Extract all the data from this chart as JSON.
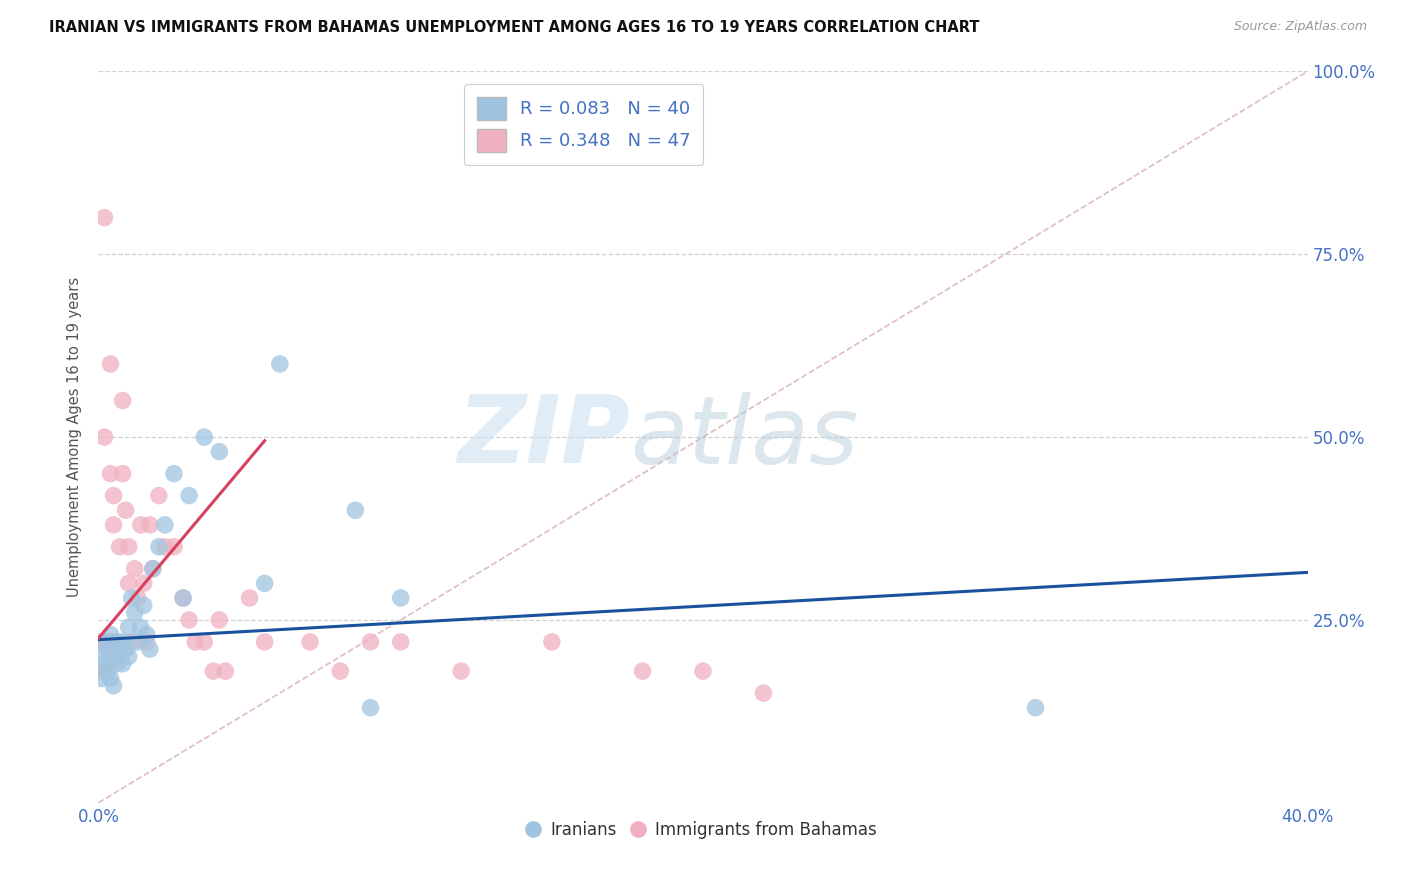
{
  "title": "IRANIAN VS IMMIGRANTS FROM BAHAMAS UNEMPLOYMENT AMONG AGES 16 TO 19 YEARS CORRELATION CHART",
  "source": "Source: ZipAtlas.com",
  "ylabel": "Unemployment Among Ages 16 to 19 years",
  "xlim": [
    0.0,
    0.4
  ],
  "ylim": [
    0.0,
    1.0
  ],
  "watermark_zip": "ZIP",
  "watermark_atlas": "atlas",
  "legend_r1": "R = 0.083",
  "legend_n1": "N = 40",
  "legend_r2": "R = 0.348",
  "legend_n2": "N = 47",
  "blue_scatter_color": "#a0c4e0",
  "pink_scatter_color": "#f0b0c0",
  "blue_line_color": "#1a52a0",
  "pink_line_color": "#d84060",
  "diag_color": "#d0a0a8",
  "axis_label_color": "#4472c4",
  "grid_color": "#cccccc",
  "background_color": "#ffffff",
  "iranians_x": [
    0.001,
    0.001,
    0.002,
    0.002,
    0.003,
    0.003,
    0.004,
    0.004,
    0.005,
    0.005,
    0.005,
    0.006,
    0.006,
    0.007,
    0.008,
    0.008,
    0.009,
    0.01,
    0.01,
    0.011,
    0.012,
    0.013,
    0.014,
    0.015,
    0.016,
    0.017,
    0.018,
    0.02,
    0.022,
    0.025,
    0.028,
    0.03,
    0.035,
    0.04,
    0.055,
    0.06,
    0.085,
    0.09,
    0.1,
    0.31
  ],
  "iranians_y": [
    0.2,
    0.17,
    0.22,
    0.19,
    0.21,
    0.18,
    0.23,
    0.17,
    0.22,
    0.2,
    0.16,
    0.22,
    0.19,
    0.21,
    0.22,
    0.19,
    0.21,
    0.24,
    0.2,
    0.28,
    0.26,
    0.22,
    0.24,
    0.27,
    0.23,
    0.21,
    0.32,
    0.35,
    0.38,
    0.45,
    0.28,
    0.42,
    0.5,
    0.48,
    0.3,
    0.6,
    0.4,
    0.13,
    0.28,
    0.13
  ],
  "bahamas_x": [
    0.001,
    0.001,
    0.002,
    0.002,
    0.003,
    0.003,
    0.004,
    0.004,
    0.005,
    0.005,
    0.005,
    0.006,
    0.007,
    0.008,
    0.008,
    0.009,
    0.01,
    0.01,
    0.011,
    0.012,
    0.013,
    0.014,
    0.015,
    0.016,
    0.017,
    0.018,
    0.02,
    0.022,
    0.025,
    0.028,
    0.03,
    0.032,
    0.035,
    0.038,
    0.04,
    0.042,
    0.05,
    0.055,
    0.07,
    0.08,
    0.09,
    0.1,
    0.12,
    0.15,
    0.18,
    0.2,
    0.22
  ],
  "bahamas_y": [
    0.22,
    0.18,
    0.8,
    0.5,
    0.22,
    0.18,
    0.6,
    0.45,
    0.42,
    0.38,
    0.22,
    0.2,
    0.35,
    0.55,
    0.45,
    0.4,
    0.35,
    0.3,
    0.22,
    0.32,
    0.28,
    0.38,
    0.3,
    0.22,
    0.38,
    0.32,
    0.42,
    0.35,
    0.35,
    0.28,
    0.25,
    0.22,
    0.22,
    0.18,
    0.25,
    0.18,
    0.28,
    0.22,
    0.22,
    0.18,
    0.22,
    0.22,
    0.18,
    0.22,
    0.18,
    0.18,
    0.15
  ],
  "blue_trend_x0": 0.0,
  "blue_trend_y0": 0.223,
  "blue_trend_x1": 0.4,
  "blue_trend_y1": 0.315,
  "pink_trend_x0": 0.0,
  "pink_trend_y0": 0.225,
  "pink_trend_x1": 0.055,
  "pink_trend_y1": 0.495
}
